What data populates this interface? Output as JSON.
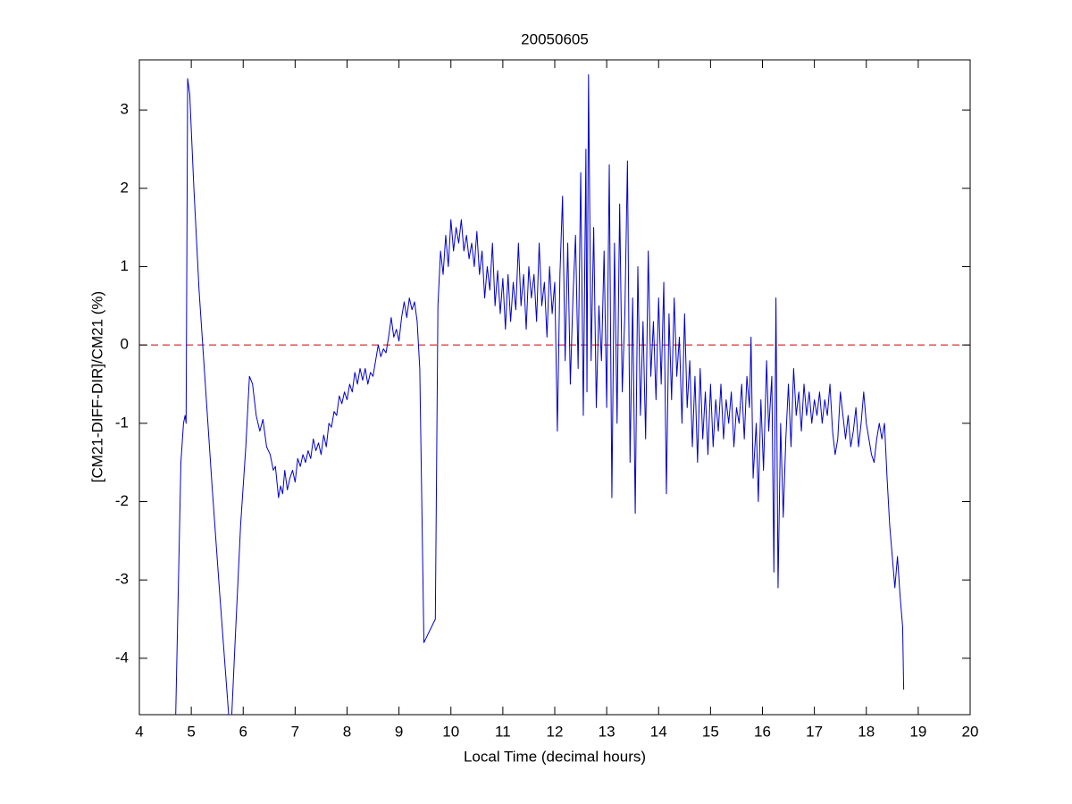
{
  "chart_data": {
    "type": "line",
    "title": "20050605",
    "xlabel": "Local Time (decimal hours)",
    "ylabel": "[CM21-DIFF-DIR]/CM21 (%)",
    "color": "#0000cc",
    "hline": {
      "value": 0,
      "color": "#cc0000",
      "style": "dashed"
    },
    "xlim": [
      4,
      20
    ],
    "xticks": [
      4,
      5,
      6,
      7,
      8,
      9,
      10,
      11,
      12,
      13,
      14,
      15,
      16,
      17,
      18,
      19,
      20
    ],
    "ylim": [
      -4.72,
      3.64
    ],
    "yticks": [
      -4,
      -3,
      -2,
      -1,
      0,
      1,
      2,
      3
    ],
    "grid": false,
    "x": [
      4.7,
      4.8,
      4.85,
      4.88,
      4.9,
      4.93,
      4.97,
      5.05,
      5.15,
      5.25,
      5.4,
      5.55,
      5.72,
      5.78,
      5.85,
      5.95,
      6.05,
      6.12,
      6.18,
      6.25,
      6.32,
      6.38,
      6.45,
      6.52,
      6.58,
      6.62,
      6.68,
      6.72,
      6.76,
      6.8,
      6.85,
      6.9,
      6.95,
      7.0,
      7.05,
      7.1,
      7.15,
      7.2,
      7.25,
      7.3,
      7.35,
      7.4,
      7.45,
      7.5,
      7.55,
      7.6,
      7.65,
      7.7,
      7.75,
      7.8,
      7.85,
      7.9,
      7.95,
      8.0,
      8.05,
      8.1,
      8.15,
      8.2,
      8.25,
      8.3,
      8.35,
      8.4,
      8.45,
      8.5,
      8.55,
      8.6,
      8.65,
      8.7,
      8.75,
      8.8,
      8.85,
      8.9,
      8.95,
      9.0,
      9.05,
      9.1,
      9.15,
      9.2,
      9.25,
      9.3,
      9.35,
      9.4,
      9.48,
      9.7,
      9.75,
      9.8,
      9.85,
      9.9,
      9.95,
      10.0,
      10.05,
      10.1,
      10.15,
      10.2,
      10.25,
      10.3,
      10.35,
      10.4,
      10.45,
      10.5,
      10.55,
      10.6,
      10.65,
      10.7,
      10.75,
      10.8,
      10.85,
      10.9,
      10.95,
      11.0,
      11.05,
      11.1,
      11.15,
      11.2,
      11.25,
      11.3,
      11.35,
      11.4,
      11.45,
      11.5,
      11.55,
      11.6,
      11.65,
      11.7,
      11.75,
      11.8,
      11.85,
      11.9,
      11.95,
      12.0,
      12.05,
      12.1,
      12.15,
      12.2,
      12.25,
      12.3,
      12.35,
      12.4,
      12.45,
      12.5,
      12.55,
      12.6,
      12.62,
      12.65,
      12.7,
      12.75,
      12.8,
      12.85,
      12.9,
      12.95,
      13.0,
      13.05,
      13.1,
      13.15,
      13.2,
      13.25,
      13.3,
      13.35,
      13.4,
      13.45,
      13.5,
      13.55,
      13.6,
      13.65,
      13.7,
      13.75,
      13.8,
      13.85,
      13.9,
      13.95,
      14.0,
      14.05,
      14.1,
      14.15,
      14.2,
      14.25,
      14.3,
      14.35,
      14.4,
      14.45,
      14.5,
      14.55,
      14.6,
      14.65,
      14.7,
      14.75,
      14.8,
      14.85,
      14.9,
      14.95,
      15.0,
      15.05,
      15.1,
      15.15,
      15.2,
      15.25,
      15.3,
      15.35,
      15.4,
      15.45,
      15.5,
      15.55,
      15.6,
      15.65,
      15.7,
      15.75,
      15.78,
      15.82,
      15.88,
      15.92,
      15.97,
      16.02,
      16.08,
      16.12,
      16.18,
      16.22,
      16.26,
      16.3,
      16.35,
      16.4,
      16.45,
      16.5,
      16.55,
      16.6,
      16.65,
      16.7,
      16.75,
      16.8,
      16.85,
      16.9,
      16.95,
      17.0,
      17.05,
      17.1,
      17.15,
      17.2,
      17.25,
      17.3,
      17.35,
      17.4,
      17.45,
      17.5,
      17.55,
      17.6,
      17.65,
      17.7,
      17.75,
      17.8,
      17.85,
      17.9,
      17.95,
      18.0,
      18.05,
      18.1,
      18.15,
      18.2,
      18.25,
      18.3,
      18.35,
      18.4,
      18.45,
      18.5,
      18.55,
      18.6,
      18.65,
      18.7,
      18.72
    ],
    "values": [
      -4.72,
      -1.5,
      -1.0,
      -0.9,
      -1.0,
      3.4,
      3.2,
      2.0,
      0.7,
      -0.3,
      -1.8,
      -3.2,
      -4.72,
      -4.72,
      -3.7,
      -2.3,
      -1.3,
      -0.4,
      -0.5,
      -0.9,
      -1.1,
      -0.95,
      -1.3,
      -1.4,
      -1.6,
      -1.55,
      -1.95,
      -1.8,
      -1.9,
      -1.6,
      -1.85,
      -1.7,
      -1.6,
      -1.75,
      -1.45,
      -1.55,
      -1.4,
      -1.5,
      -1.35,
      -1.45,
      -1.2,
      -1.35,
      -1.25,
      -1.4,
      -1.15,
      -1.3,
      -1.0,
      -1.05,
      -0.85,
      -0.9,
      -0.65,
      -0.75,
      -0.6,
      -0.7,
      -0.5,
      -0.6,
      -0.35,
      -0.5,
      -0.3,
      -0.45,
      -0.3,
      -0.5,
      -0.35,
      -0.4,
      -0.2,
      0.0,
      -0.15,
      -0.05,
      -0.1,
      0.1,
      0.35,
      0.1,
      0.2,
      0.05,
      0.35,
      0.55,
      0.35,
      0.6,
      0.45,
      0.55,
      0.3,
      -0.3,
      -3.8,
      -3.5,
      0.5,
      1.2,
      0.9,
      1.4,
      1.0,
      1.6,
      1.2,
      1.5,
      1.3,
      1.6,
      1.2,
      1.4,
      1.1,
      1.3,
      1.0,
      1.45,
      0.9,
      1.2,
      0.6,
      1.0,
      0.7,
      1.3,
      0.5,
      0.95,
      0.4,
      0.85,
      0.2,
      0.9,
      0.3,
      0.8,
      0.45,
      1.3,
      0.5,
      0.9,
      0.2,
      1.0,
      0.6,
      0.9,
      0.3,
      1.3,
      0.5,
      0.8,
      0.1,
      1.0,
      0.4,
      0.8,
      -1.1,
      0.9,
      1.9,
      -0.2,
      1.3,
      -0.5,
      0.6,
      1.4,
      -0.3,
      2.2,
      -0.9,
      2.5,
      -0.6,
      3.45,
      -0.2,
      1.5,
      -0.8,
      0.5,
      -0.2,
      1.2,
      -0.8,
      2.3,
      -1.95,
      1.3,
      -1.0,
      1.8,
      -0.6,
      0.4,
      2.35,
      -1.5,
      0.6,
      -2.15,
      1.0,
      -0.9,
      0.3,
      -1.2,
      1.2,
      -0.4,
      0.3,
      -0.7,
      0.6,
      -0.5,
      0.8,
      -1.9,
      0.4,
      -0.7,
      0.6,
      -0.4,
      0.1,
      -1.0,
      0.4,
      -0.8,
      -0.2,
      -1.3,
      -0.4,
      -1.5,
      -0.3,
      -1.2,
      -0.6,
      -1.4,
      -0.5,
      -1.3,
      -0.7,
      -1.1,
      -0.5,
      -1.2,
      -0.7,
      -1.0,
      -0.6,
      -1.3,
      -0.8,
      -1.0,
      -0.5,
      -1.2,
      -0.4,
      -0.8,
      0.1,
      -1.7,
      -1.0,
      -2.0,
      -0.7,
      -1.6,
      -0.2,
      -1.1,
      -0.4,
      -2.9,
      0.6,
      -3.1,
      -1.0,
      -2.2,
      -1.2,
      -0.5,
      -1.3,
      -0.3,
      -0.9,
      -0.6,
      -1.1,
      -0.5,
      -0.9,
      -0.6,
      -1.0,
      -0.7,
      -0.9,
      -0.6,
      -1.0,
      -0.7,
      -0.9,
      -0.5,
      -1.1,
      -1.4,
      -1.2,
      -0.6,
      -0.9,
      -1.2,
      -0.9,
      -1.3,
      -1.1,
      -0.8,
      -1.3,
      -1.0,
      -0.6,
      -1.0,
      -1.2,
      -1.4,
      -1.5,
      -1.2,
      -1.0,
      -1.2,
      -1.0,
      -1.7,
      -2.3,
      -2.7,
      -3.1,
      -2.7,
      -3.2,
      -3.6,
      -4.4
    ]
  }
}
